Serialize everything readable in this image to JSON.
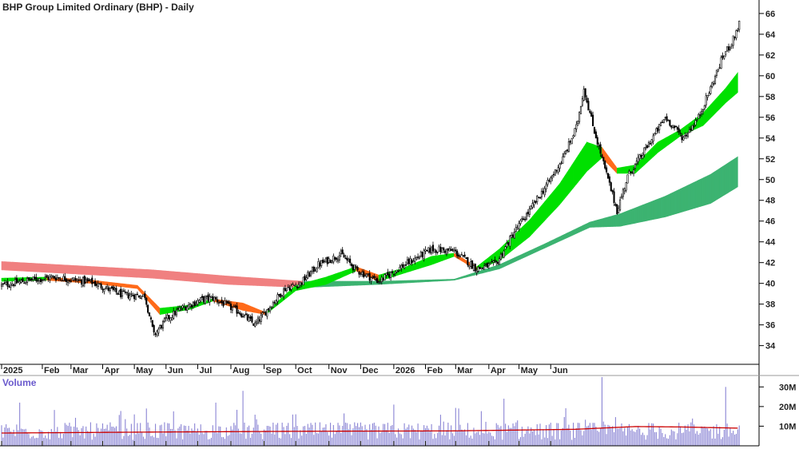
{
  "chart_data": [
    {
      "type": "candlestick",
      "title": "BHP Group Limited Ordinary (BHP) - Daily",
      "y_ticks": [
        34,
        36,
        38,
        40,
        42,
        44,
        46,
        48,
        50,
        52,
        54,
        56,
        58,
        60,
        62,
        64,
        66
      ],
      "ylim": [
        32.2,
        67.3
      ],
      "x_ticks": [
        "2025",
        "Feb",
        "Mar",
        "Apr",
        "May",
        "Jun",
        "Jul",
        "Aug",
        "Sep",
        "Oct",
        "Nov",
        "Dec",
        "2026",
        "Feb",
        "Mar",
        "Apr",
        "May",
        "Jun"
      ],
      "price_keypoints": [
        [
          0,
          39.8
        ],
        [
          18,
          40.3
        ],
        [
          35,
          40.6
        ],
        [
          60,
          40.1
        ],
        [
          80,
          38.9
        ],
        [
          95,
          38.8
        ],
        [
          101,
          35.0
        ],
        [
          109,
          36.5
        ],
        [
          118,
          37.5
        ],
        [
          132,
          38.4
        ],
        [
          140,
          38.6
        ],
        [
          158,
          37.2
        ],
        [
          168,
          36.0
        ],
        [
          178,
          37.8
        ],
        [
          188,
          39.5
        ],
        [
          198,
          40.0
        ],
        [
          210,
          41.8
        ],
        [
          225,
          42.8
        ],
        [
          235,
          41.3
        ],
        [
          250,
          40.2
        ],
        [
          265,
          41.6
        ],
        [
          285,
          43.3
        ],
        [
          300,
          43.1
        ],
        [
          315,
          41.4
        ],
        [
          328,
          41.9
        ],
        [
          340,
          45.0
        ],
        [
          350,
          47.0
        ],
        [
          362,
          49.6
        ],
        [
          372,
          52.0
        ],
        [
          381,
          55.0
        ],
        [
          386,
          58.8
        ],
        [
          392,
          55.2
        ],
        [
          400,
          51.0
        ],
        [
          408,
          47.0
        ],
        [
          415,
          50.3
        ],
        [
          425,
          52.5
        ],
        [
          440,
          56.0
        ],
        [
          452,
          54.0
        ],
        [
          462,
          56.0
        ],
        [
          470,
          58.8
        ],
        [
          478,
          61.8
        ],
        [
          485,
          63.5
        ],
        [
          489,
          65.0
        ]
      ],
      "series": [
        {
          "type": "band",
          "keypoints": [
            [
              0,
              42.1,
              41.3
            ],
            [
              50,
              41.7,
              40.9
            ],
            [
              100,
              41.3,
              40.5
            ],
            [
              150,
              40.7,
              39.9
            ],
            [
              200,
              40.2,
              39.6
            ],
            [
              250,
              40.2,
              39.9
            ],
            [
              300,
              40.4,
              40.3
            ],
            [
              330,
              41.8,
              41.4
            ],
            [
              360,
              43.8,
              43.4
            ],
            [
              390,
              45.9,
              45.4
            ],
            [
              410,
              46.7,
              45.5
            ],
            [
              440,
              48.4,
              46.4
            ],
            [
              470,
              50.5,
              47.7
            ],
            [
              488,
              52.2,
              49.3
            ]
          ],
          "colors": {
            "rising": "#3cb371",
            "falling": "#f08080"
          }
        },
        {
          "type": "band",
          "keypoints": [
            [
              0,
              40.5,
              40.2
            ],
            [
              30,
              40.6,
              40.3
            ],
            [
              60,
              40.3,
              40.0
            ],
            [
              90,
              39.8,
              39.5
            ],
            [
              105,
              37.6,
              37.0
            ],
            [
              125,
              37.9,
              37.5
            ],
            [
              140,
              38.5,
              38.3
            ],
            [
              160,
              38.1,
              37.4
            ],
            [
              175,
              37.2,
              37.0
            ],
            [
              195,
              39.8,
              39.3
            ],
            [
              215,
              40.6,
              39.9
            ],
            [
              235,
              41.6,
              41.2
            ],
            [
              250,
              40.8,
              40.2
            ],
            [
              265,
              41.4,
              40.9
            ],
            [
              285,
              42.6,
              41.8
            ],
            [
              300,
              42.9,
              42.6
            ],
            [
              315,
              41.6,
              41.3
            ],
            [
              330,
              43.3,
              42.2
            ],
            [
              350,
              46.1,
              44.5
            ],
            [
              370,
              49.6,
              47.6
            ],
            [
              388,
              53.6,
              50.8
            ],
            [
              398,
              53.1,
              52.1
            ],
            [
              408,
              51.1,
              50.6
            ],
            [
              420,
              51.4,
              50.6
            ],
            [
              435,
              53.6,
              52.6
            ],
            [
              450,
              54.8,
              54.2
            ],
            [
              465,
              56.4,
              55.2
            ],
            [
              480,
              58.8,
              57.4
            ],
            [
              488,
              60.3,
              58.4
            ]
          ],
          "colors": {
            "rising": "#00e000",
            "falling": "#ff6a1a"
          }
        },
        {
          "type": "volume",
          "y_ticks": [
            "10M",
            "20M",
            "30M"
          ],
          "ylim": [
            0,
            35
          ],
          "average_keypoints": [
            [
              0,
              6.5
            ],
            [
              100,
              7.0
            ],
            [
              200,
              7.4
            ],
            [
              300,
              7.6
            ],
            [
              380,
              8.4
            ],
            [
              420,
              9.8
            ],
            [
              450,
              9.6
            ],
            [
              488,
              9.0
            ]
          ],
          "spikes": [
            [
              12,
              22
            ],
            [
              88,
              16
            ],
            [
              96,
              19
            ],
            [
              142,
              22
            ],
            [
              160,
              28
            ],
            [
              260,
              21
            ],
            [
              333,
              24
            ],
            [
              398,
              35
            ],
            [
              480,
              30
            ]
          ]
        }
      ],
      "colors": {
        "volume_bar": "#8a84d4",
        "average_line": "#cc0000",
        "candle": "#000000",
        "candle_hollow": "#ffffff",
        "grid": "#000000"
      }
    }
  ],
  "labels": {
    "title": "BHP Group Limited Ordinary (BHP) - Daily",
    "volume_title": "Volume"
  }
}
